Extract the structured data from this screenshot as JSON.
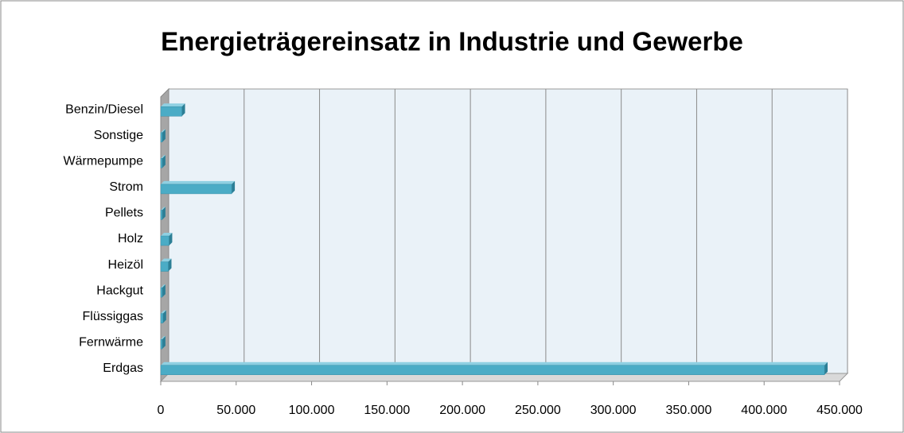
{
  "chart_data": {
    "type": "bar",
    "orientation": "horizontal",
    "title": "Energieträgereinsatz in Industrie und Gewerbe",
    "categories": [
      "Erdgas",
      "Fernwärme",
      "Flüssiggas",
      "Hackgut",
      "Heizöl",
      "Holz",
      "Pellets",
      "Strom",
      "Wärmepumpe",
      "Sonstige",
      "Benzin/Diesel"
    ],
    "values": [
      440000,
      1000,
      1500,
      1000,
      5000,
      5500,
      1000,
      47000,
      1000,
      1000,
      14000
    ],
    "color": "#4bacc6",
    "xlim": [
      0,
      450000
    ],
    "xticks": [
      0,
      {
        "value": 50000,
        "label": "50.000"
      },
      {
        "value": 100000,
        "label": "100.000"
      },
      {
        "value": 150000,
        "label": "150.000"
      },
      {
        "value": 200000,
        "label": "200.000"
      },
      {
        "value": 250000,
        "label": "250.000"
      },
      {
        "value": 300000,
        "label": "300.000"
      },
      {
        "value": 350000,
        "label": "350.000"
      },
      {
        "value": 400000,
        "label": "400.000"
      },
      {
        "value": 450000,
        "label": "450.000"
      }
    ],
    "grid": true
  }
}
